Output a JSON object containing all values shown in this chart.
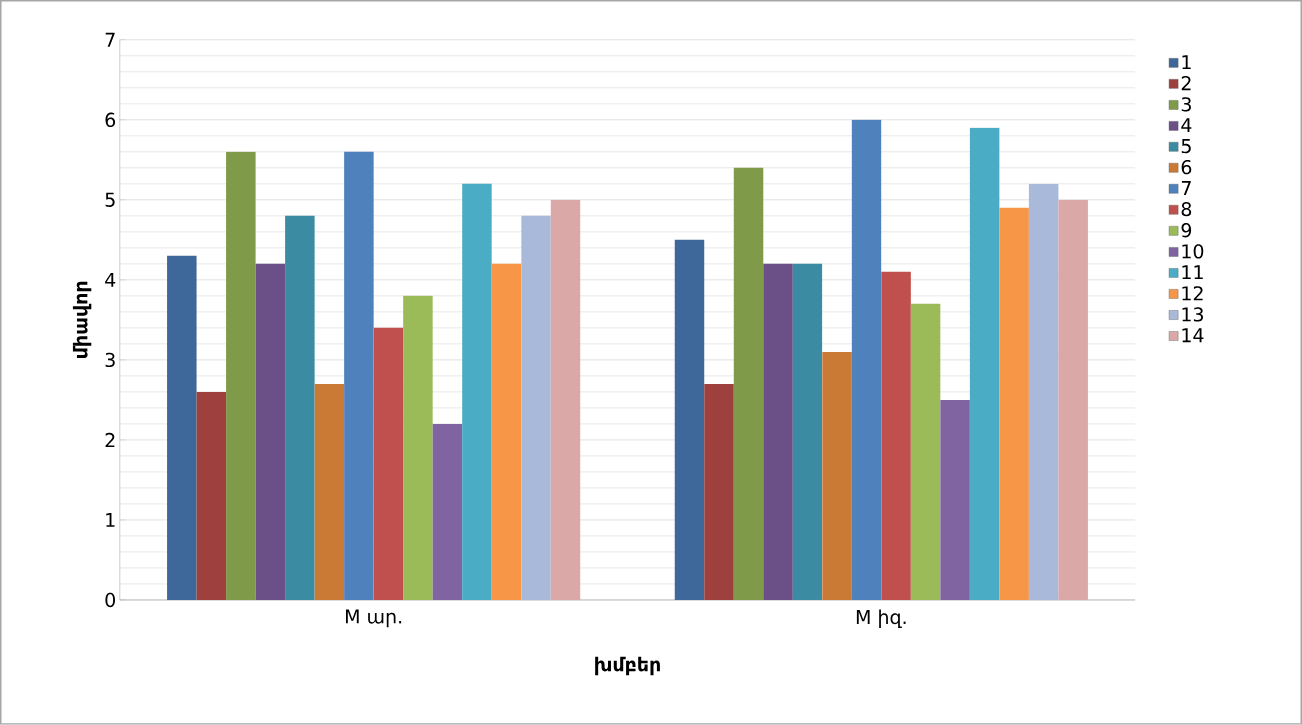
{
  "chart_data": {
    "type": "bar",
    "xlabel": "խմբեր",
    "ylabel": "միավոր",
    "categories": [
      "M ար.",
      "M իզ."
    ],
    "ylim": [
      0,
      7
    ],
    "yticks": [
      0,
      1,
      2,
      3,
      4,
      5,
      6,
      7
    ],
    "grid": "y",
    "legend": "right",
    "series": [
      {
        "name": "1",
        "color": "#3d6899",
        "values": [
          4.3,
          4.5
        ]
      },
      {
        "name": "2",
        "color": "#9e403d",
        "values": [
          2.6,
          2.7
        ]
      },
      {
        "name": "3",
        "color": "#7f9a48",
        "values": [
          5.6,
          5.4
        ]
      },
      {
        "name": "4",
        "color": "#6a5087",
        "values": [
          4.2,
          4.2
        ]
      },
      {
        "name": "5",
        "color": "#3b8ca2",
        "values": [
          4.8,
          4.2
        ]
      },
      {
        "name": "6",
        "color": "#cb7a36",
        "values": [
          2.7,
          3.1
        ]
      },
      {
        "name": "7",
        "color": "#4f81bd",
        "values": [
          5.6,
          6.0
        ]
      },
      {
        "name": "8",
        "color": "#c0504d",
        "values": [
          3.4,
          4.1
        ]
      },
      {
        "name": "9",
        "color": "#9bbb59",
        "values": [
          3.8,
          3.7
        ]
      },
      {
        "name": "10",
        "color": "#8064a2",
        "values": [
          2.2,
          2.5
        ]
      },
      {
        "name": "11",
        "color": "#4bacc6",
        "values": [
          5.2,
          5.9
        ]
      },
      {
        "name": "12",
        "color": "#f79646",
        "values": [
          4.2,
          4.9
        ]
      },
      {
        "name": "13",
        "color": "#a9b9d9",
        "values": [
          4.8,
          5.2
        ]
      },
      {
        "name": "14",
        "color": "#d9a8a7",
        "values": [
          5.0,
          5.0
        ]
      }
    ]
  }
}
